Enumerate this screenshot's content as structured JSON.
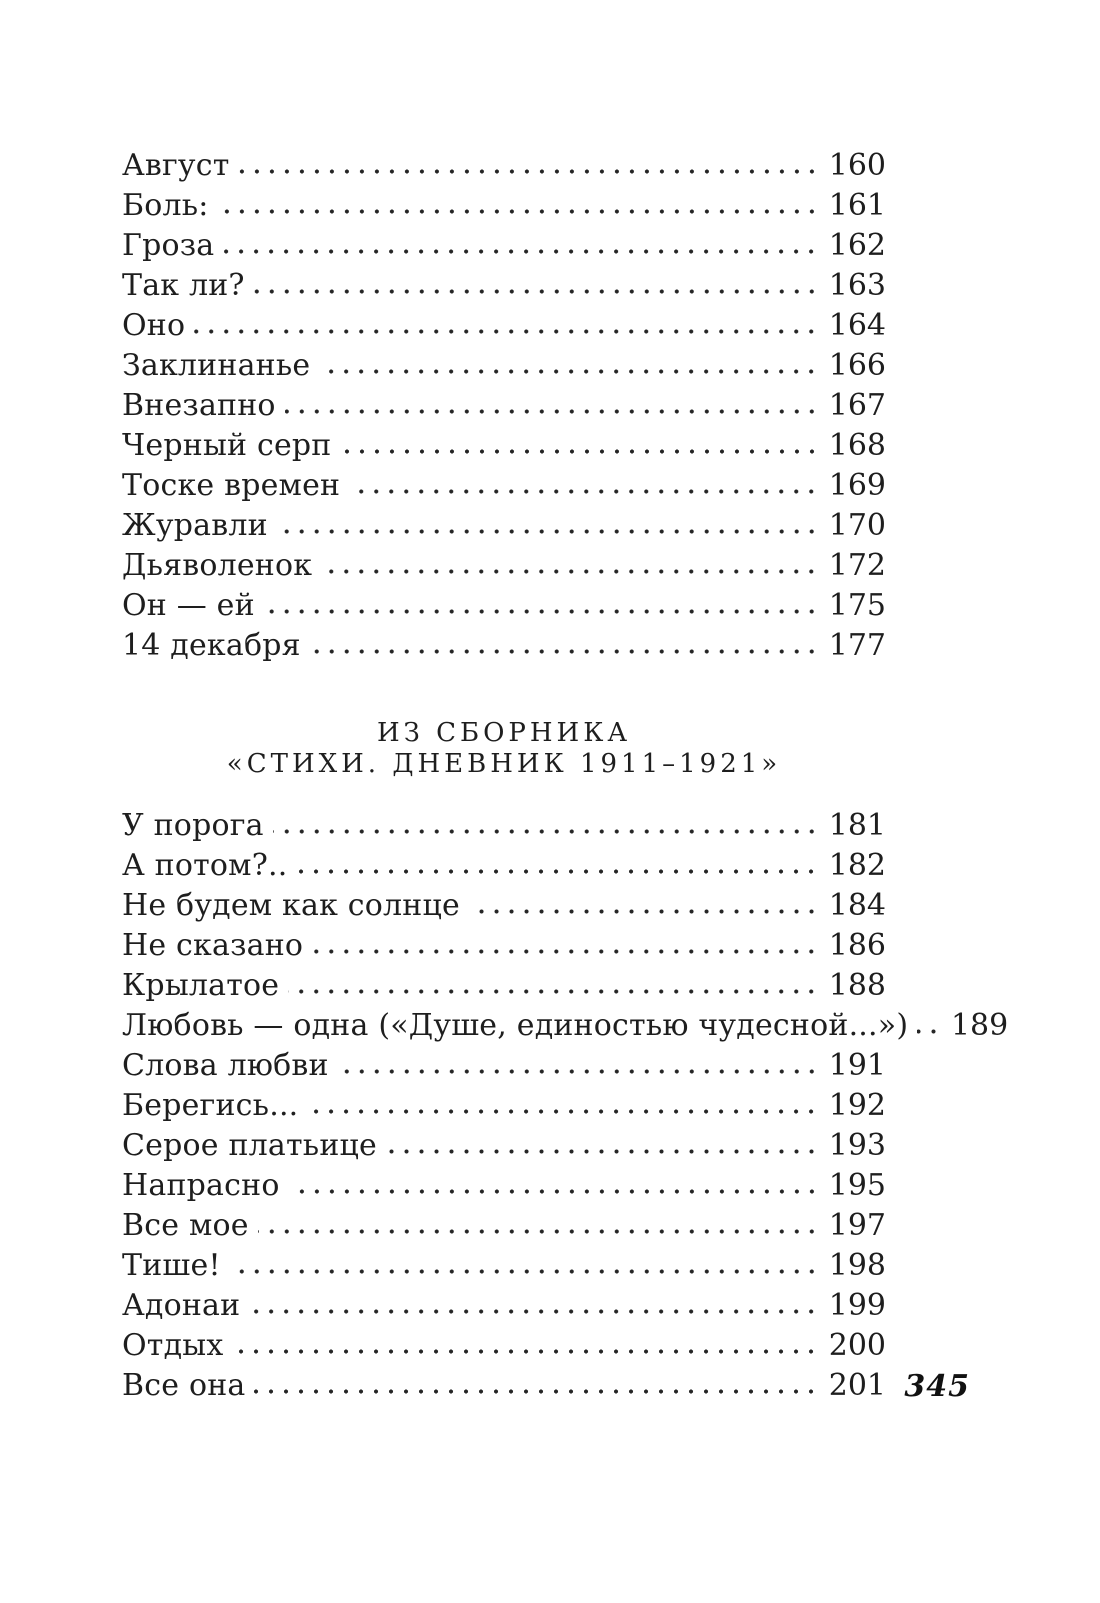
{
  "document": {
    "folio": "345",
    "sections": [
      {
        "heading_lines": [],
        "entries": [
          {
            "title": "Август",
            "page": "160"
          },
          {
            "title": "Боль:",
            "page": "161"
          },
          {
            "title": "Гроза",
            "page": "162"
          },
          {
            "title": "Так ли?",
            "page": "163"
          },
          {
            "title": "Оно",
            "page": "164"
          },
          {
            "title": "Заклинанье",
            "page": "166"
          },
          {
            "title": "Внезапно",
            "page": "167"
          },
          {
            "title": "Черный серп",
            "page": "168"
          },
          {
            "title": "Тоске времен",
            "page": "169"
          },
          {
            "title": "Журавли",
            "page": "170"
          },
          {
            "title": "Дьяволенок",
            "page": "172"
          },
          {
            "title": "Он — ей",
            "page": "175"
          },
          {
            "title": "14 декабря",
            "page": "177"
          }
        ]
      },
      {
        "heading_lines": [
          "ИЗ СБОРНИКА",
          "«СТИХИ. ДНЕВНИК 1911–1921»"
        ],
        "entries": [
          {
            "title": "У порога",
            "page": "181"
          },
          {
            "title": "А потом?..",
            "page": "182"
          },
          {
            "title": "Не будем как солнце",
            "page": "184"
          },
          {
            "title": "Не сказано",
            "page": "186"
          },
          {
            "title": "Крылатое",
            "page": "188"
          },
          {
            "title": "Любовь — одна («Душе, единостью чудесной...»)",
            "page": "189"
          },
          {
            "title": "Слова любви",
            "page": "191"
          },
          {
            "title": "Берегись...",
            "page": "192"
          },
          {
            "title": "Серое платьице",
            "page": "193"
          },
          {
            "title": "Напрасно",
            "page": "195"
          },
          {
            "title": "Все мое",
            "page": "197"
          },
          {
            "title": "Тише!",
            "page": "198"
          },
          {
            "title": "Адонаи",
            "page": "199"
          },
          {
            "title": "Отдых",
            "page": "200"
          },
          {
            "title": "Все она",
            "page": "201"
          }
        ]
      }
    ]
  }
}
